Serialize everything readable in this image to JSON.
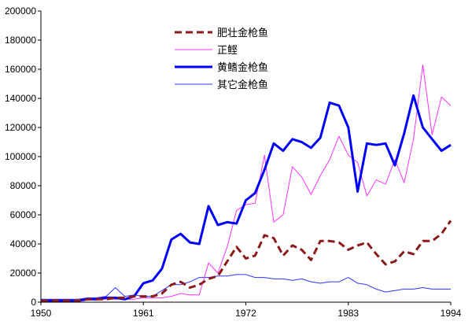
{
  "chart_data": {
    "type": "line",
    "x": [
      1950,
      1951,
      1952,
      1953,
      1954,
      1955,
      1956,
      1957,
      1958,
      1959,
      1960,
      1961,
      1962,
      1963,
      1964,
      1965,
      1966,
      1967,
      1968,
      1969,
      1970,
      1971,
      1972,
      1973,
      1974,
      1975,
      1976,
      1977,
      1978,
      1979,
      1980,
      1981,
      1982,
      1983,
      1984,
      1985,
      1986,
      1987,
      1988,
      1989,
      1990,
      1991,
      1992,
      1993,
      1994
    ],
    "xticks": [
      "1950",
      "1961",
      "1972",
      "1983",
      "1994"
    ],
    "xtick_values": [
      1950,
      1961,
      1972,
      1983,
      1994
    ],
    "yticks": [
      "0",
      "20000",
      "40000",
      "60000",
      "80000",
      "100000",
      "120000",
      "140000",
      "160000",
      "180000",
      "200000"
    ],
    "ylim": [
      0,
      200000
    ],
    "legend_position": "top-center",
    "grid": false,
    "series": [
      {
        "name": "肥壮金枪鱼",
        "color": "#8b1a1a",
        "style": "dashed",
        "values": [
          1000,
          1000,
          1000,
          1000,
          1000,
          2000,
          2000,
          2000,
          3000,
          3000,
          4000,
          4000,
          4000,
          6000,
          12000,
          14000,
          10000,
          12000,
          16000,
          18000,
          28000,
          38000,
          30000,
          32000,
          46000,
          44000,
          32000,
          39000,
          36000,
          29000,
          42000,
          42000,
          41000,
          36000,
          39000,
          41000,
          33000,
          26000,
          28000,
          35000,
          33000,
          42000,
          42000,
          47000,
          56000
        ]
      },
      {
        "name": "正鲣",
        "color": "#ff33ff",
        "style": "solid-thin",
        "values": [
          1000,
          1000,
          1000,
          1000,
          1000,
          2000,
          2000,
          2000,
          2000,
          2000,
          2000,
          3000,
          3000,
          3000,
          4000,
          6000,
          5000,
          5000,
          27000,
          20000,
          38000,
          63000,
          67000,
          68000,
          101000,
          55000,
          60000,
          93000,
          86000,
          74000,
          87000,
          98000,
          114000,
          101000,
          96000,
          73000,
          84000,
          81000,
          98000,
          82000,
          112000,
          163000,
          115000,
          141000,
          135000
        ]
      },
      {
        "name": "黄鳍金枪鱼",
        "color": "#0000ff",
        "style": "solid-thick",
        "values": [
          1000,
          1000,
          1000,
          1000,
          1000,
          2000,
          2000,
          3000,
          3000,
          2000,
          4000,
          13000,
          15000,
          23000,
          43000,
          47000,
          41000,
          40000,
          66000,
          53000,
          55000,
          54000,
          70000,
          75000,
          91000,
          109000,
          104000,
          112000,
          110000,
          106000,
          113000,
          137000,
          135000,
          120000,
          76000,
          109000,
          108000,
          109000,
          94000,
          116000,
          142000,
          120000,
          112000,
          104000,
          108000
        ]
      },
      {
        "name": "其它金枪鱼",
        "color": "#3333ff",
        "style": "solid-thin",
        "values": [
          2000,
          2000,
          2000,
          2000,
          2000,
          3000,
          3000,
          4000,
          10000,
          4000,
          5000,
          4000,
          4000,
          8000,
          12000,
          12000,
          14000,
          17000,
          17000,
          18000,
          18000,
          19000,
          19000,
          17000,
          17000,
          16000,
          16000,
          15000,
          16000,
          14000,
          13000,
          14000,
          14000,
          17000,
          13000,
          12000,
          9000,
          7000,
          8000,
          9000,
          9000,
          10000,
          9000,
          9000,
          9000
        ]
      }
    ]
  }
}
